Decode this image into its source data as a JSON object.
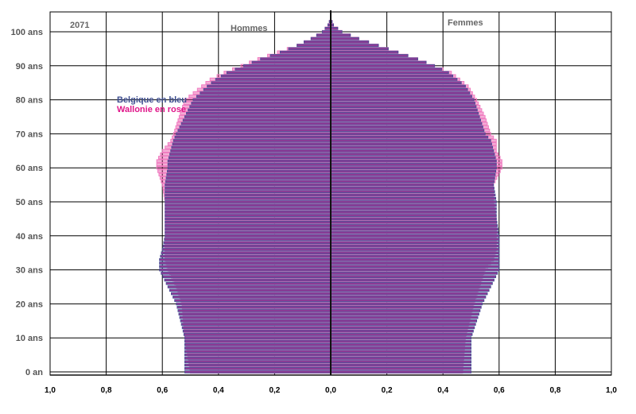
{
  "chart_data": {
    "type": "bar",
    "subtype": "population-pyramid",
    "year": "2071",
    "left_panel_label": "Hommes",
    "right_panel_label": "Femmes",
    "y_ticks": [
      "0 an",
      "10 ans",
      "20 ans",
      "30 ans",
      "40 ans",
      "50 ans",
      "60 ans",
      "70 ans",
      "80 ans",
      "90 ans",
      "100 ans"
    ],
    "x_ticks": [
      "1,0",
      "0,8",
      "0,6",
      "0,4",
      "0,2",
      "0,0",
      "0,2",
      "0,4",
      "0,6",
      "0,8",
      "1,0"
    ],
    "xlim": [
      -1.0,
      1.0
    ],
    "ylim": [
      0,
      105
    ],
    "grid": true,
    "legend": {
      "placement": "left",
      "entries": [
        {
          "label": "Belgique en bleu",
          "color": "#3d4d8f"
        },
        {
          "label": "Wallonie en rose",
          "color": "#e0168a"
        }
      ]
    },
    "series": [
      {
        "name": "Belgique en bleu",
        "color": "#3d4d8f",
        "age_key_points": [
          0,
          10,
          20,
          25,
          30,
          33,
          36,
          40,
          45,
          50,
          55,
          60,
          62,
          65,
          68,
          70,
          75,
          80,
          84,
          86,
          88,
          90,
          92,
          94,
          96,
          98,
          100,
          102,
          104
        ],
        "hommes_key_values": [
          0.52,
          0.52,
          0.55,
          0.58,
          0.61,
          0.61,
          0.6,
          0.59,
          0.59,
          0.59,
          0.59,
          0.58,
          0.58,
          0.57,
          0.56,
          0.55,
          0.52,
          0.49,
          0.44,
          0.41,
          0.37,
          0.31,
          0.25,
          0.18,
          0.12,
          0.07,
          0.03,
          0.01,
          0.0
        ],
        "femmes_key_values": [
          0.5,
          0.5,
          0.54,
          0.57,
          0.6,
          0.6,
          0.6,
          0.6,
          0.59,
          0.59,
          0.58,
          0.59,
          0.59,
          0.58,
          0.57,
          0.55,
          0.53,
          0.51,
          0.48,
          0.45,
          0.42,
          0.37,
          0.31,
          0.24,
          0.17,
          0.1,
          0.04,
          0.01,
          0.0
        ]
      },
      {
        "name": "Wallonie en rose",
        "color": "#e0168a",
        "age_key_points": [
          0,
          10,
          20,
          25,
          30,
          33,
          36,
          40,
          45,
          50,
          55,
          60,
          62,
          65,
          68,
          70,
          75,
          80,
          84,
          86,
          88,
          90,
          92,
          94,
          96,
          98,
          100,
          102,
          104
        ],
        "hommes_key_values": [
          0.5,
          0.52,
          0.53,
          0.55,
          0.58,
          0.59,
          0.59,
          0.59,
          0.59,
          0.59,
          0.6,
          0.62,
          0.62,
          0.6,
          0.57,
          0.56,
          0.54,
          0.52,
          0.46,
          0.43,
          0.38,
          0.32,
          0.26,
          0.19,
          0.12,
          0.07,
          0.03,
          0.01,
          0.0
        ],
        "femmes_key_values": [
          0.47,
          0.48,
          0.51,
          0.53,
          0.55,
          0.58,
          0.59,
          0.59,
          0.59,
          0.58,
          0.58,
          0.61,
          0.61,
          0.59,
          0.59,
          0.57,
          0.55,
          0.52,
          0.49,
          0.46,
          0.43,
          0.37,
          0.31,
          0.24,
          0.17,
          0.1,
          0.04,
          0.01,
          0.0
        ]
      }
    ]
  }
}
